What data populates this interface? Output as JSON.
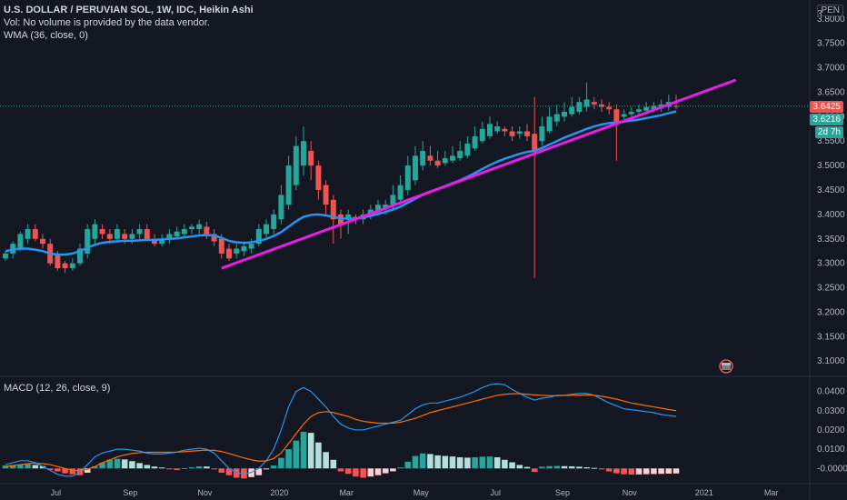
{
  "header": {
    "title": "U.S. DOLLAR / PERUVIAN SOL, 1W, IDC, Heikin Ashi",
    "volume_note": "Vol: No volume is provided by the data vendor.",
    "wma_label": "WMA (36, close, 0)",
    "currency": "PEN"
  },
  "macd": {
    "label": "MACD (12, 26, close, 9)",
    "ticks": [
      "0.0400",
      "0.0300",
      "0.0200",
      "0.0100",
      "-0.0000"
    ]
  },
  "price_axis": {
    "ticks": [
      "3",
      "3.8000",
      "3.7500",
      "3.7000",
      "3.6500",
      "3.6000",
      "3.5500",
      "3.5000",
      "3.4500",
      "3.4000",
      "3.3500",
      "3.3000",
      "3.2500",
      "3.2000",
      "3.1500",
      "3.1000"
    ],
    "last_price": "3.6425",
    "current_price": "3.6216",
    "countdown": "2d 7h"
  },
  "time_axis": {
    "ticks": [
      "Jul",
      "Sep",
      "Nov",
      "2020",
      "Mar",
      "May",
      "Jul",
      "Sep",
      "Nov",
      "2021",
      "Mar"
    ]
  },
  "colors": {
    "up": "#26a69a",
    "down": "#ef5350",
    "wma": "#2196f3",
    "trendline": "#e91ee6",
    "macd": "#2196f3",
    "signal": "#ff6d00",
    "bg": "#131722"
  },
  "chart_data": {
    "type": "candlestick",
    "symbol": "USDPEN",
    "interval": "1W",
    "style": "Heikin Ashi",
    "ylim": [
      3.08,
      3.82
    ],
    "candles": [
      [
        3.31,
        3.32,
        3.305,
        3.325
      ],
      [
        3.32,
        3.34,
        3.31,
        3.345
      ],
      [
        3.33,
        3.36,
        3.325,
        3.365
      ],
      [
        3.35,
        3.37,
        3.34,
        3.38
      ],
      [
        3.37,
        3.35,
        3.345,
        3.38
      ],
      [
        3.35,
        3.34,
        3.33,
        3.36
      ],
      [
        3.34,
        3.3,
        3.295,
        3.35
      ],
      [
        3.32,
        3.29,
        3.285,
        3.325
      ],
      [
        3.3,
        3.29,
        3.28,
        3.305
      ],
      [
        3.29,
        3.3,
        3.285,
        3.31
      ],
      [
        3.3,
        3.33,
        3.295,
        3.34
      ],
      [
        3.32,
        3.37,
        3.31,
        3.38
      ],
      [
        3.35,
        3.38,
        3.34,
        3.39
      ],
      [
        3.37,
        3.36,
        3.35,
        3.38
      ],
      [
        3.36,
        3.35,
        3.34,
        3.37
      ],
      [
        3.35,
        3.37,
        3.345,
        3.38
      ],
      [
        3.36,
        3.35,
        3.34,
        3.37
      ],
      [
        3.35,
        3.36,
        3.34,
        3.37
      ],
      [
        3.36,
        3.37,
        3.35,
        3.38
      ],
      [
        3.37,
        3.35,
        3.345,
        3.38
      ],
      [
        3.35,
        3.34,
        3.335,
        3.36
      ],
      [
        3.34,
        3.35,
        3.335,
        3.36
      ],
      [
        3.35,
        3.36,
        3.34,
        3.37
      ],
      [
        3.355,
        3.365,
        3.35,
        3.375
      ],
      [
        3.36,
        3.37,
        3.355,
        3.38
      ],
      [
        3.37,
        3.375,
        3.36,
        3.38
      ],
      [
        3.37,
        3.38,
        3.36,
        3.39
      ],
      [
        3.375,
        3.36,
        3.35,
        3.385
      ],
      [
        3.36,
        3.345,
        3.335,
        3.37
      ],
      [
        3.35,
        3.32,
        3.31,
        3.36
      ],
      [
        3.33,
        3.31,
        3.305,
        3.34
      ],
      [
        3.32,
        3.33,
        3.31,
        3.34
      ],
      [
        3.325,
        3.335,
        3.315,
        3.345
      ],
      [
        3.33,
        3.34,
        3.32,
        3.35
      ],
      [
        3.34,
        3.37,
        3.335,
        3.38
      ],
      [
        3.36,
        3.38,
        3.35,
        3.39
      ],
      [
        3.37,
        3.4,
        3.36,
        3.41
      ],
      [
        3.39,
        3.44,
        3.38,
        3.46
      ],
      [
        3.42,
        3.5,
        3.41,
        3.52
      ],
      [
        3.46,
        3.54,
        3.45,
        3.56
      ],
      [
        3.5,
        3.55,
        3.48,
        3.58
      ],
      [
        3.53,
        3.5,
        3.47,
        3.55
      ],
      [
        3.5,
        3.45,
        3.43,
        3.51
      ],
      [
        3.46,
        3.42,
        3.4,
        3.47
      ],
      [
        3.43,
        3.39,
        3.34,
        3.44
      ],
      [
        3.4,
        3.38,
        3.35,
        3.41
      ],
      [
        3.39,
        3.4,
        3.36,
        3.41
      ],
      [
        3.395,
        3.39,
        3.38,
        3.4
      ],
      [
        3.39,
        3.4,
        3.38,
        3.41
      ],
      [
        3.4,
        3.41,
        3.39,
        3.42
      ],
      [
        3.405,
        3.42,
        3.4,
        3.43
      ],
      [
        3.41,
        3.42,
        3.4,
        3.43
      ],
      [
        3.42,
        3.44,
        3.41,
        3.46
      ],
      [
        3.43,
        3.46,
        3.42,
        3.48
      ],
      [
        3.45,
        3.5,
        3.44,
        3.52
      ],
      [
        3.47,
        3.52,
        3.46,
        3.54
      ],
      [
        3.5,
        3.53,
        3.49,
        3.55
      ],
      [
        3.52,
        3.51,
        3.5,
        3.54
      ],
      [
        3.51,
        3.5,
        3.495,
        3.53
      ],
      [
        3.505,
        3.515,
        3.5,
        3.53
      ],
      [
        3.51,
        3.52,
        3.505,
        3.54
      ],
      [
        3.515,
        3.53,
        3.51,
        3.55
      ],
      [
        3.52,
        3.545,
        3.515,
        3.56
      ],
      [
        3.535,
        3.56,
        3.53,
        3.58
      ],
      [
        3.55,
        3.575,
        3.545,
        3.59
      ],
      [
        3.56,
        3.585,
        3.555,
        3.6
      ],
      [
        3.57,
        3.58,
        3.565,
        3.59
      ],
      [
        3.575,
        3.57,
        3.56,
        3.58
      ],
      [
        3.57,
        3.56,
        3.55,
        3.58
      ],
      [
        3.565,
        3.57,
        3.555,
        3.58
      ],
      [
        3.57,
        3.56,
        3.55,
        3.585
      ],
      [
        3.565,
        3.53,
        3.27,
        3.64
      ],
      [
        3.55,
        3.58,
        3.54,
        3.6
      ],
      [
        3.57,
        3.6,
        3.565,
        3.62
      ],
      [
        3.59,
        3.605,
        3.58,
        3.625
      ],
      [
        3.6,
        3.61,
        3.59,
        3.63
      ],
      [
        3.605,
        3.62,
        3.6,
        3.64
      ],
      [
        3.61,
        3.63,
        3.605,
        3.64
      ],
      [
        3.62,
        3.635,
        3.61,
        3.67
      ],
      [
        3.63,
        3.625,
        3.615,
        3.64
      ],
      [
        3.625,
        3.62,
        3.61,
        3.635
      ],
      [
        3.62,
        3.615,
        3.605,
        3.63
      ],
      [
        3.615,
        3.59,
        3.51,
        3.625
      ],
      [
        3.6,
        3.605,
        3.595,
        3.615
      ],
      [
        3.605,
        3.61,
        3.6,
        3.62
      ],
      [
        3.61,
        3.615,
        3.605,
        3.625
      ],
      [
        3.612,
        3.62,
        3.605,
        3.63
      ],
      [
        3.615,
        3.622,
        3.61,
        3.63
      ],
      [
        3.618,
        3.625,
        3.61,
        3.635
      ],
      [
        3.62,
        3.63,
        3.612,
        3.645
      ],
      [
        3.622,
        3.6216,
        3.615,
        3.645
      ]
    ],
    "wma": [
      3.325,
      3.328,
      3.33,
      3.33,
      3.328,
      3.325,
      3.32,
      3.318,
      3.318,
      3.32,
      3.325,
      3.332,
      3.338,
      3.342,
      3.344,
      3.345,
      3.346,
      3.346,
      3.347,
      3.348,
      3.348,
      3.349,
      3.35,
      3.351,
      3.353,
      3.355,
      3.357,
      3.358,
      3.357,
      3.352,
      3.346,
      3.343,
      3.342,
      3.343,
      3.346,
      3.35,
      3.356,
      3.364,
      3.375,
      3.386,
      3.395,
      3.399,
      3.4,
      3.398,
      3.395,
      3.392,
      3.391,
      3.392,
      3.394,
      3.397,
      3.401,
      3.405,
      3.41,
      3.416,
      3.424,
      3.432,
      3.44,
      3.447,
      3.452,
      3.458,
      3.464,
      3.47,
      3.477,
      3.485,
      3.493,
      3.501,
      3.508,
      3.514,
      3.519,
      3.524,
      3.528,
      3.53,
      3.536,
      3.543,
      3.55,
      3.557,
      3.563,
      3.569,
      3.575,
      3.58,
      3.584,
      3.587,
      3.588,
      3.59,
      3.592,
      3.594,
      3.597,
      3.6,
      3.603,
      3.607,
      3.611
    ],
    "trendline": {
      "start": {
        "index": 29,
        "value": 3.29
      },
      "end": {
        "index": 98,
        "value": 3.675
      }
    },
    "macd_ylim": [
      -0.006,
      0.045
    ],
    "macd_line": [
      0.002,
      0.003,
      0.004,
      0.004,
      0.003,
      0.001,
      -0.001,
      -0.003,
      -0.004,
      -0.004,
      -0.002,
      0.002,
      0.006,
      0.008,
      0.009,
      0.01,
      0.01,
      0.0095,
      0.009,
      0.008,
      0.0075,
      0.0075,
      0.008,
      0.0085,
      0.0095,
      0.01,
      0.0105,
      0.01,
      0.008,
      0.004,
      0.0,
      -0.002,
      -0.003,
      -0.002,
      0.0,
      0.004,
      0.01,
      0.02,
      0.032,
      0.04,
      0.042,
      0.04,
      0.036,
      0.032,
      0.027,
      0.023,
      0.021,
      0.02,
      0.02,
      0.021,
      0.022,
      0.023,
      0.024,
      0.025,
      0.028,
      0.031,
      0.033,
      0.034,
      0.034,
      0.035,
      0.036,
      0.037,
      0.0385,
      0.04,
      0.042,
      0.0435,
      0.044,
      0.0435,
      0.041,
      0.039,
      0.037,
      0.0355,
      0.0365,
      0.037,
      0.038,
      0.038,
      0.0385,
      0.039,
      0.039,
      0.038,
      0.036,
      0.034,
      0.0325,
      0.031,
      0.0305,
      0.03,
      0.0295,
      0.029,
      0.028,
      0.0275,
      0.027
    ],
    "signal_line": [
      0.001,
      0.0015,
      0.002,
      0.0025,
      0.0027,
      0.0025,
      0.002,
      0.001,
      0.0,
      -0.001,
      -0.0012,
      -0.0005,
      0.001,
      0.003,
      0.0045,
      0.006,
      0.007,
      0.0078,
      0.0082,
      0.0084,
      0.0084,
      0.0084,
      0.0084,
      0.0085,
      0.0087,
      0.009,
      0.0093,
      0.0095,
      0.0094,
      0.0088,
      0.0078,
      0.0066,
      0.0055,
      0.0045,
      0.0038,
      0.0039,
      0.0052,
      0.008,
      0.013,
      0.018,
      0.023,
      0.027,
      0.029,
      0.0295,
      0.029,
      0.028,
      0.027,
      0.0255,
      0.0245,
      0.024,
      0.0235,
      0.0235,
      0.0235,
      0.024,
      0.025,
      0.026,
      0.0275,
      0.029,
      0.03,
      0.031,
      0.032,
      0.033,
      0.034,
      0.035,
      0.036,
      0.037,
      0.038,
      0.0385,
      0.0388,
      0.0388,
      0.0385,
      0.0382,
      0.038,
      0.0378,
      0.0378,
      0.0379,
      0.038,
      0.0381,
      0.0382,
      0.038,
      0.0375,
      0.0368,
      0.036,
      0.035,
      0.034,
      0.0333,
      0.0326,
      0.032,
      0.0313,
      0.0306,
      0.03
    ],
    "histogram": [
      0.0015,
      0.0018,
      0.002,
      0.0022,
      0.0018,
      0.0012,
      -0.0008,
      -0.0015,
      -0.0025,
      -0.003,
      -0.0035,
      -0.0022,
      0.001,
      0.003,
      0.0045,
      0.005,
      0.0047,
      0.0038,
      0.0028,
      0.0018,
      0.001,
      0.0005,
      -0.0005,
      -0.0008,
      0.0002,
      0.0006,
      0.0011,
      0.001,
      -0.0005,
      -0.0022,
      -0.0035,
      -0.0048,
      -0.0052,
      -0.0045,
      -0.0035,
      -0.0005,
      0.0015,
      0.0055,
      0.01,
      0.0145,
      0.019,
      0.0185,
      0.0135,
      0.0085,
      0.0045,
      -0.0015,
      -0.0028,
      -0.0042,
      -0.0048,
      -0.0042,
      -0.0035,
      -0.0025,
      -0.0015,
      0.0005,
      0.0035,
      0.0065,
      0.0078,
      0.0075,
      0.0068,
      0.0065,
      0.0062,
      0.0058,
      0.0056,
      0.0058,
      0.0061,
      0.0062,
      0.0058,
      0.0045,
      0.0032,
      0.0018,
      0.0008,
      -0.0018,
      0.0009,
      0.0012,
      0.0013,
      0.0012,
      0.0011,
      0.0009,
      0.0006,
      0.0003,
      -0.0005,
      -0.0015,
      -0.0025,
      -0.003,
      -0.0032,
      -0.0031,
      -0.003,
      -0.0029,
      -0.0028,
      -0.0027,
      -0.0026
    ]
  }
}
